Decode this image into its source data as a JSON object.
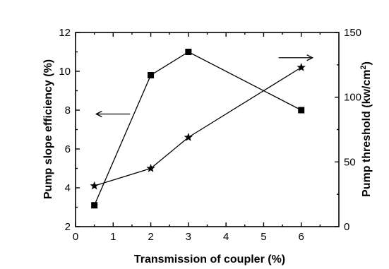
{
  "chart_data": {
    "type": "line",
    "xlabel": "Transmission of coupler (%)",
    "ylabel_left": "Pump slope efficiency (%)",
    "ylabel_right_main": "Pump threshold (kw/cm",
    "ylabel_right_sup": "2",
    "ylabel_right_close": ")",
    "xlim": [
      0,
      7
    ],
    "ylim_left": [
      2,
      12
    ],
    "ylim_right": [
      0,
      150
    ],
    "x_ticks": [
      0,
      1,
      2,
      3,
      4,
      5,
      6
    ],
    "y_left_ticks": [
      2,
      4,
      6,
      8,
      10,
      12
    ],
    "y_right_ticks": [
      0,
      50,
      100,
      150
    ],
    "grid": false,
    "legend": "none",
    "series": [
      {
        "axis": "left",
        "marker": "square",
        "x": [
          0.5,
          2,
          3,
          6
        ],
        "y": [
          3.1,
          9.8,
          11.0,
          8.0
        ]
      },
      {
        "axis": "right",
        "marker": "star",
        "x": [
          0.5,
          2,
          3,
          6
        ],
        "y": [
          31.5,
          45,
          69,
          123
        ]
      }
    ],
    "annotations": [
      {
        "type": "arrow",
        "direction": "left",
        "x": [
          1.45,
          0.55
        ],
        "y_left": 7.8
      },
      {
        "type": "arrow",
        "direction": "right",
        "x": [
          5.4,
          6.3
        ],
        "y_left": 10.7
      }
    ]
  }
}
